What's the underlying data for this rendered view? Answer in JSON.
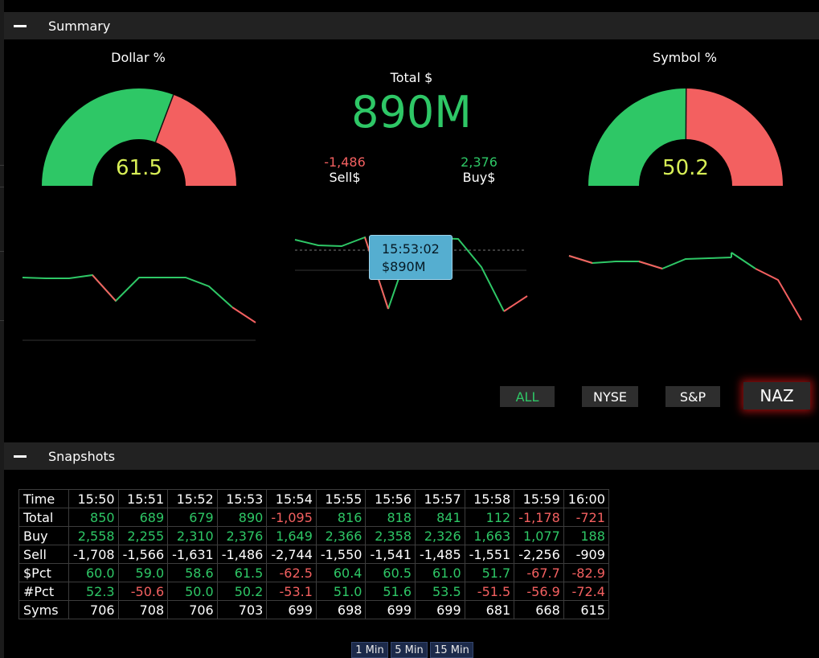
{
  "summary": {
    "title": "Summary"
  },
  "dollar_gauge": {
    "label": "Dollar %",
    "value": "61.5",
    "fraction": 0.615
  },
  "symbol_gauge": {
    "label": "Symbol %",
    "value": "50.2",
    "fraction": 0.502
  },
  "total": {
    "label": "Total $",
    "value": "890M"
  },
  "sell": {
    "value": "-1,486",
    "label": "Sell$"
  },
  "buy": {
    "value": "2,376",
    "label": "Buy$"
  },
  "tooltip": {
    "time": "15:53:02",
    "value": "$890M"
  },
  "filters": {
    "all": "ALL",
    "nyse": "NYSE",
    "sp": "S&P",
    "naz": "NAZ",
    "active": "NAZ"
  },
  "snapshots": {
    "title": "Snapshots",
    "time_label": "Time",
    "times": [
      "15:50",
      "15:51",
      "15:52",
      "15:53",
      "15:54",
      "15:55",
      "15:56",
      "15:57",
      "15:58",
      "15:59",
      "16:00"
    ],
    "rows": [
      {
        "label": "Total",
        "values": [
          "850",
          "689",
          "679",
          "890",
          "-1,095",
          "816",
          "818",
          "841",
          "112",
          "-1,178",
          "-721"
        ]
      },
      {
        "label": "Buy",
        "values": [
          "2,558",
          "2,255",
          "2,310",
          "2,376",
          "1,649",
          "2,366",
          "2,358",
          "2,326",
          "1,663",
          "1,077",
          "188"
        ]
      },
      {
        "label": "Sell",
        "values": [
          "-1,708",
          "-1,566",
          "-1,631",
          "-1,486",
          "-2,744",
          "-1,550",
          "-1,541",
          "-1,485",
          "-1,551",
          "-2,256",
          "-909"
        ]
      },
      {
        "label": "$Pct",
        "values": [
          "60.0",
          "59.0",
          "58.6",
          "61.5",
          "-62.5",
          "60.4",
          "60.5",
          "61.0",
          "51.7",
          "-67.7",
          "-82.9"
        ]
      },
      {
        "label": "#Pct",
        "values": [
          "52.3",
          "-50.6",
          "50.0",
          "50.2",
          "-53.1",
          "51.0",
          "51.6",
          "53.5",
          "-51.5",
          "-56.9",
          "-72.4"
        ]
      },
      {
        "label": "Syms",
        "values": [
          "706",
          "708",
          "706",
          "703",
          "699",
          "698",
          "699",
          "699",
          "681",
          "668",
          "615"
        ]
      }
    ]
  },
  "intervals": [
    "1 Min",
    "5 Min",
    "15 Min"
  ],
  "colors": {
    "green": "#2ec766",
    "red": "#f36060",
    "gauge_value": "#d8ef56",
    "tooltip_bg": "#55aed0"
  }
}
